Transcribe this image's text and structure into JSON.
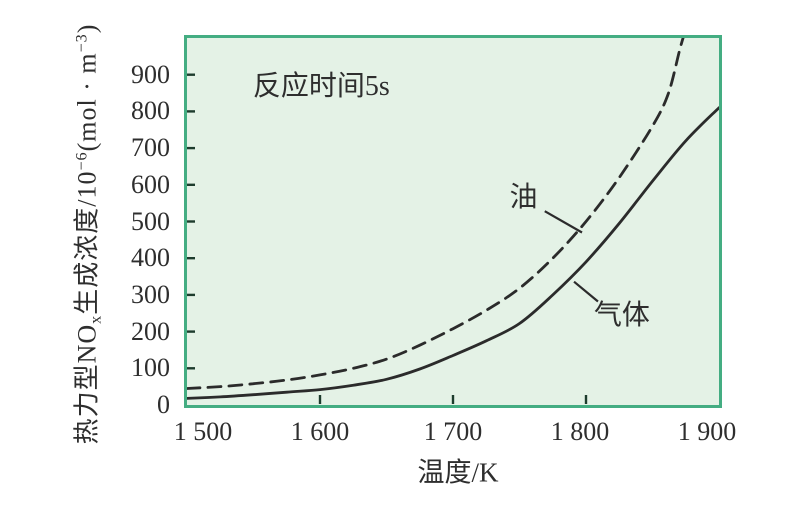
{
  "figure": {
    "background": "#ffffff"
  },
  "chart_data": {
    "type": "line",
    "annotation": "反应时间5s",
    "xlabel": "温度/K",
    "ylabel": "热力型NOx生成浓度/10⁻⁶(mol · m⁻³)",
    "ylabel_parts": [
      {
        "t": "n",
        "v": "热力型NO"
      },
      {
        "t": "sub",
        "v": "x"
      },
      {
        "t": "n",
        "v": "生成浓度/10"
      },
      {
        "t": "sup",
        "v": "−6"
      },
      {
        "t": "n",
        "v": "(mol · m"
      },
      {
        "t": "sup",
        "v": "−3"
      },
      {
        "t": "n",
        "v": ")"
      }
    ],
    "xlim": [
      1500,
      1900
    ],
    "ylim": [
      0,
      1000
    ],
    "grid": false,
    "legend_position": "inline-labels",
    "x_ticks": [
      {
        "label": "1 500",
        "value": 1500,
        "mark": false,
        "dx": 16
      },
      {
        "label": "1 600",
        "value": 1600,
        "mark": true,
        "dx": 0
      },
      {
        "label": "1 700",
        "value": 1700,
        "mark": true,
        "dx": 0
      },
      {
        "label": "1 800",
        "value": 1800,
        "mark": true,
        "dx": -6
      },
      {
        "label": "1 900",
        "value": 1900,
        "mark": false,
        "dx": -12
      }
    ],
    "y_ticks": [
      {
        "label": "0",
        "value": 0,
        "mark": false
      },
      {
        "label": "100",
        "value": 100,
        "mark": true
      },
      {
        "label": "200",
        "value": 200,
        "mark": true
      },
      {
        "label": "300",
        "value": 300,
        "mark": true
      },
      {
        "label": "400",
        "value": 400,
        "mark": true
      },
      {
        "label": "500",
        "value": 500,
        "mark": true
      },
      {
        "label": "600",
        "value": 600,
        "mark": true
      },
      {
        "label": "700",
        "value": 700,
        "mark": true
      },
      {
        "label": "800",
        "value": 800,
        "mark": true
      },
      {
        "label": "900",
        "value": 900,
        "mark": true
      }
    ],
    "series": [
      {
        "id": "oil",
        "name": "油",
        "line": "dashed",
        "x": [
          1500,
          1525,
          1550,
          1575,
          1600,
          1625,
          1650,
          1675,
          1700,
          1725,
          1750,
          1775,
          1800,
          1825,
          1850,
          1862,
          1871,
          1878
        ],
        "y": [
          45,
          50,
          58,
          68,
          82,
          100,
          125,
          163,
          208,
          258,
          318,
          400,
          500,
          620,
          760,
          850,
          975,
          1060
        ]
      },
      {
        "id": "gas",
        "name": "气体",
        "line": "solid",
        "x": [
          1500,
          1525,
          1550,
          1575,
          1600,
          1625,
          1650,
          1675,
          1700,
          1725,
          1750,
          1775,
          1800,
          1825,
          1850,
          1875,
          1900
        ],
        "y": [
          18,
          22,
          28,
          35,
          42,
          54,
          70,
          98,
          135,
          175,
          222,
          300,
          390,
          495,
          610,
          720,
          810
        ]
      }
    ],
    "annotations": [
      {
        "id": "reaction-time",
        "text": "反应时间5s",
        "x": 1601,
        "y": 876
      },
      {
        "id": "oil",
        "text": "油",
        "x": 1753,
        "y": 572,
        "leader": [
          1769,
          528,
          1797,
          470
        ]
      },
      {
        "id": "gas",
        "text": "气体",
        "x": 1827,
        "y": 252,
        "leader": [
          1791,
          336,
          1809,
          282
        ]
      }
    ],
    "colors": {
      "plot_bg": "#e4f2e6",
      "plot_border": "#44ad82",
      "curve": "#2b2b2b",
      "tick": "#1d3c2d",
      "text": "#2e2e2e"
    }
  }
}
